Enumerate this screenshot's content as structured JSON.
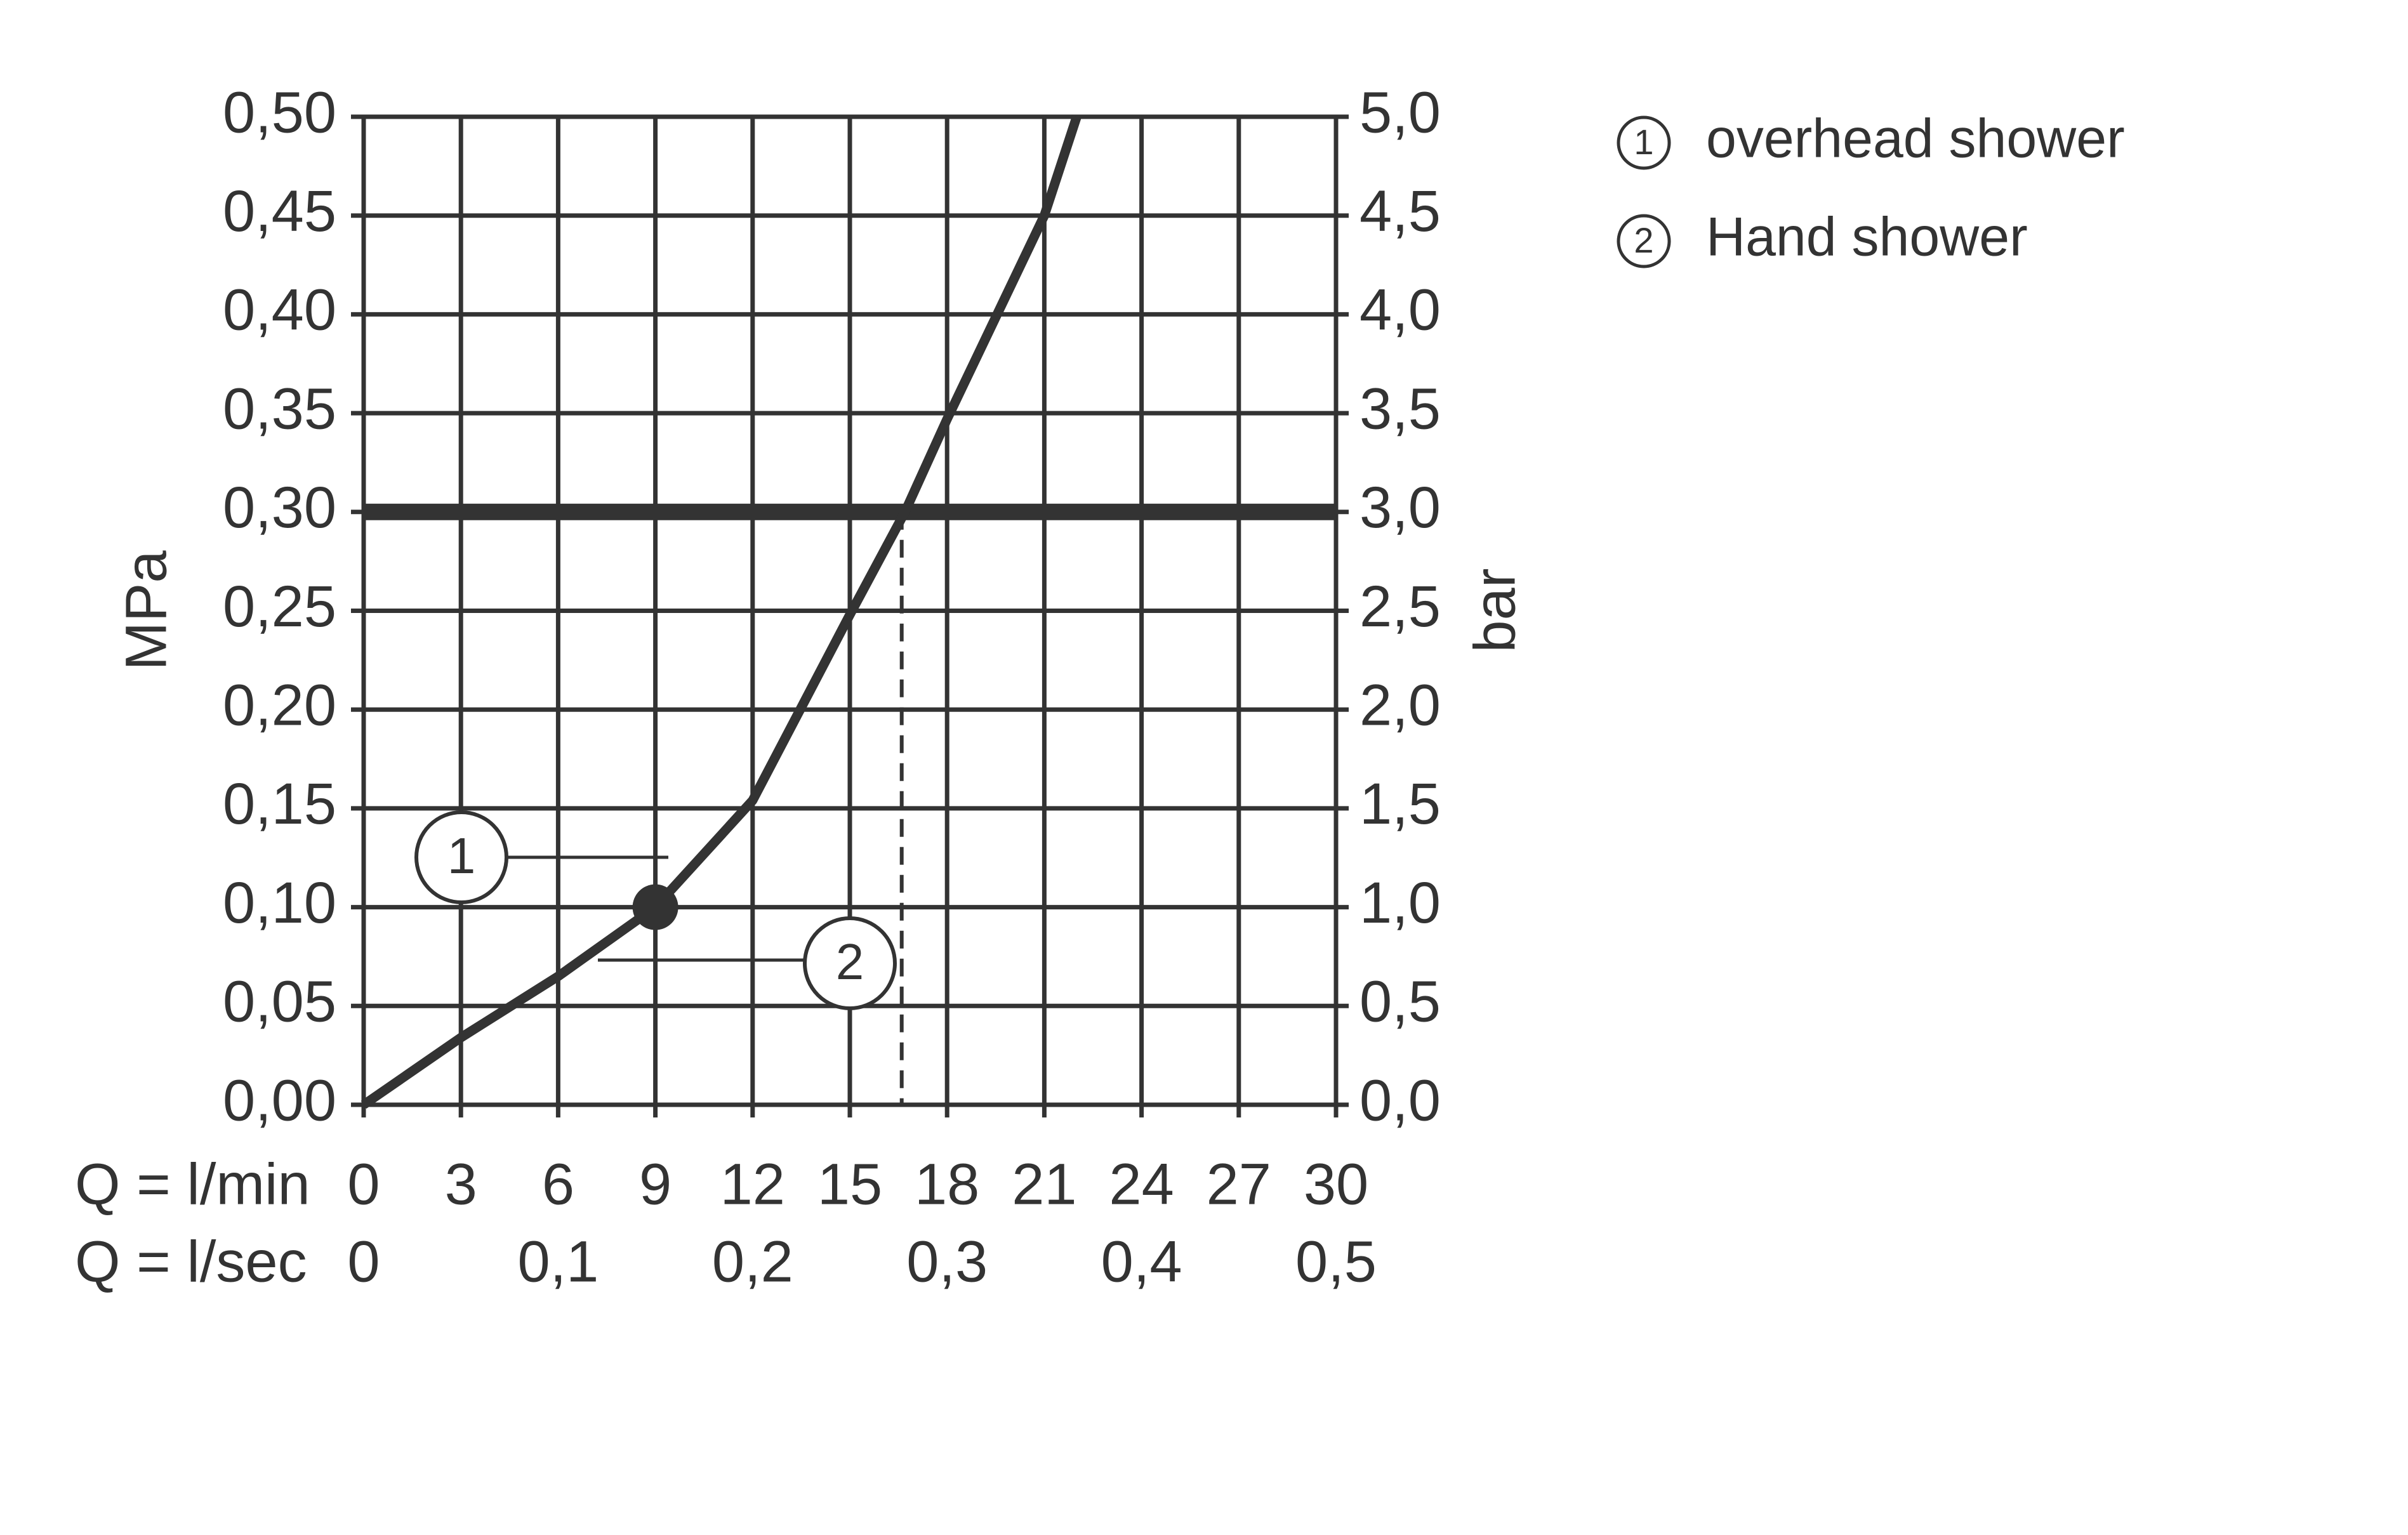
{
  "chart_data": {
    "type": "line",
    "x_label": "Q = l/min",
    "x2_label": "Q = l/sec",
    "y_label": "MPa",
    "y2_label": "bar",
    "xlim": [
      0,
      30
    ],
    "xticks": [
      0,
      3,
      6,
      9,
      12,
      15,
      18,
      21,
      24,
      27,
      30
    ],
    "x2lim": [
      0,
      0.5
    ],
    "x2ticks": [
      0,
      {
        "value": 0.1,
        "label": "0,1"
      },
      {
        "value": 0.2,
        "label": "0,2"
      },
      {
        "value": 0.3,
        "label": "0,3"
      },
      {
        "value": 0.4,
        "label": "0,4"
      },
      {
        "value": 0.5,
        "label": "0,5"
      }
    ],
    "ylim": [
      0,
      0.5
    ],
    "yticks": [
      {
        "value": 0,
        "label": "0,00"
      },
      {
        "value": 0.05,
        "label": "0,05"
      },
      {
        "value": 0.1,
        "label": "0,10"
      },
      {
        "value": 0.15,
        "label": "0,15"
      },
      {
        "value": 0.2,
        "label": "0,20"
      },
      {
        "value": 0.25,
        "label": "0,25"
      },
      {
        "value": 0.3,
        "label": "0,30"
      },
      {
        "value": 0.35,
        "label": "0,35"
      },
      {
        "value": 0.4,
        "label": "0,40"
      },
      {
        "value": 0.45,
        "label": "0,45"
      },
      {
        "value": 0.5,
        "label": "0,50"
      }
    ],
    "y2lim": [
      0,
      5
    ],
    "y2ticks": [
      {
        "value": 0,
        "label": "0,0"
      },
      {
        "value": 0.5,
        "label": "0,5"
      },
      {
        "value": 1,
        "label": "1,0"
      },
      {
        "value": 1.5,
        "label": "1,5"
      },
      {
        "value": 2,
        "label": "2,0"
      },
      {
        "value": 2.5,
        "label": "2,5"
      },
      {
        "value": 3,
        "label": "3,0"
      },
      {
        "value": 3.5,
        "label": "3,5"
      },
      {
        "value": 4,
        "label": "4,0"
      },
      {
        "value": 4.5,
        "label": "4,5"
      },
      {
        "value": 5,
        "label": "5,0"
      }
    ],
    "grid": true,
    "series": [
      {
        "color": "#333333",
        "x": [
          0,
          3,
          6,
          9,
          12,
          15,
          16.7,
          18,
          21,
          22
        ],
        "values": [
          0,
          0.034,
          0.065,
          0.1,
          0.154,
          0.248,
          0.3,
          0.347,
          0.45,
          0.5
        ]
      }
    ],
    "operating_point": {
      "x": 9,
      "y": 0.1
    },
    "reference_line": 0.3,
    "flow_at_reference": 16.6,
    "legend": [
      {
        "marker": "1",
        "label": "overhead shower"
      },
      {
        "marker": "2",
        "label": "Hand shower"
      }
    ]
  }
}
